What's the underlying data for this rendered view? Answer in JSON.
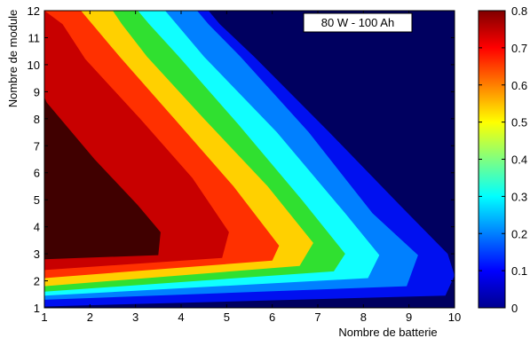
{
  "chart_data": {
    "type": "heatmap",
    "subtype": "filled-contour",
    "annotation": "80 W - 100 Ah",
    "xlabel": "Nombre de batterie",
    "ylabel": "Nombre de module",
    "xlim": [
      1,
      10
    ],
    "ylim": [
      1,
      12
    ],
    "x_ticks": [
      "1",
      "2",
      "3",
      "4",
      "5",
      "6",
      "7",
      "8",
      "9",
      "10"
    ],
    "y_ticks": [
      "1",
      "2",
      "3",
      "4",
      "5",
      "6",
      "7",
      "8",
      "9",
      "10",
      "11",
      "12"
    ],
    "colorbar": {
      "range": [
        0,
        0.8
      ],
      "ticks": [
        "0",
        "0.1",
        "0.2",
        "0.3",
        "0.4",
        "0.5",
        "0.6",
        "0.7",
        "0.8"
      ],
      "colormap": "jet"
    },
    "levels": [
      {
        "value": 0.8,
        "color": "#400000",
        "boundary": [
          [
            1,
            2.8
          ],
          [
            3.5,
            2.95
          ],
          [
            3.55,
            3.8
          ],
          [
            3.05,
            4.8
          ],
          [
            2.1,
            6.5
          ],
          [
            1.05,
            8.6
          ],
          [
            1,
            8.8
          ]
        ]
      },
      {
        "value": 0.7,
        "color": "#c80000",
        "boundary": [
          [
            1,
            2.4
          ],
          [
            4.9,
            2.85
          ],
          [
            5.05,
            3.8
          ],
          [
            4.25,
            5.8
          ],
          [
            3.1,
            8.0
          ],
          [
            1.9,
            10.2
          ],
          [
            1.4,
            11.5
          ],
          [
            1,
            12
          ]
        ]
      },
      {
        "value": 0.6,
        "color": "#ff3000",
        "boundary": [
          [
            1,
            2.1
          ],
          [
            6.0,
            2.75
          ],
          [
            6.15,
            3.3
          ],
          [
            5.15,
            5.5
          ],
          [
            3.85,
            8.0
          ],
          [
            2.65,
            10.3
          ],
          [
            2.1,
            11.4
          ],
          [
            1.8,
            12
          ]
        ]
      },
      {
        "value": 0.5,
        "color": "#ffd000",
        "boundary": [
          [
            1,
            1.8
          ],
          [
            6.6,
            2.55
          ],
          [
            6.9,
            3.4
          ],
          [
            5.9,
            5.5
          ],
          [
            4.5,
            8.0
          ],
          [
            3.25,
            10.3
          ],
          [
            2.7,
            11.5
          ],
          [
            2.5,
            12
          ]
        ]
      },
      {
        "value": 0.4,
        "color": "#30e030",
        "boundary": [
          [
            1,
            1.6
          ],
          [
            7.35,
            2.35
          ],
          [
            7.6,
            3.0
          ],
          [
            6.65,
            5.0
          ],
          [
            5.25,
            7.8
          ],
          [
            3.95,
            10.3
          ],
          [
            3.3,
            11.5
          ],
          [
            3.05,
            12
          ]
        ]
      },
      {
        "value": 0.3,
        "color": "#10ffff",
        "boundary": [
          [
            1,
            1.45
          ],
          [
            8.1,
            2.1
          ],
          [
            8.35,
            2.95
          ],
          [
            7.6,
            4.5
          ],
          [
            6.1,
            7.5
          ],
          [
            4.5,
            10.3
          ],
          [
            3.9,
            11.5
          ],
          [
            3.65,
            12
          ]
        ]
      },
      {
        "value": 0.2,
        "color": "#0080ff",
        "boundary": [
          [
            1,
            1.3
          ],
          [
            8.95,
            1.8
          ],
          [
            9.2,
            2.95
          ],
          [
            8.2,
            4.5
          ],
          [
            6.8,
            7.5
          ],
          [
            5.3,
            10.3
          ],
          [
            4.6,
            11.5
          ],
          [
            4.35,
            12
          ]
        ]
      },
      {
        "value": 0.1,
        "color": "#0010f0",
        "boundary": [
          [
            1,
            1.05
          ],
          [
            9.8,
            1.45
          ],
          [
            10,
            2.2
          ],
          [
            9.85,
            3.0
          ],
          [
            8.8,
            4.8
          ],
          [
            7.25,
            7.5
          ],
          [
            5.6,
            10.3
          ],
          [
            4.85,
            11.5
          ],
          [
            4.6,
            12
          ]
        ]
      }
    ],
    "background_color": "#000060"
  }
}
